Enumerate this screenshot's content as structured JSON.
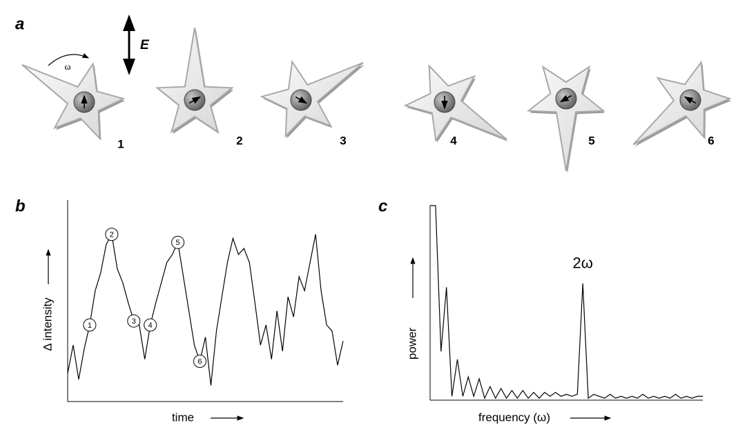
{
  "figure": {
    "panel_label": "a",
    "field_label": "E",
    "rotation_label": "ω",
    "stars": [
      {
        "label": "1"
      },
      {
        "label": "2"
      },
      {
        "label": "3"
      },
      {
        "label": "4"
      },
      {
        "label": "5"
      },
      {
        "label": "6"
      }
    ]
  },
  "chart_data": [
    {
      "type": "line",
      "panel_label": "b",
      "x_label": "time",
      "y_label": "Δ intensity",
      "color": "#000000",
      "xlim": [
        0,
        100
      ],
      "ylim": [
        0,
        100
      ],
      "x": [
        0,
        2,
        4,
        6,
        8,
        10,
        12,
        14,
        16,
        18,
        20,
        22,
        24,
        26,
        28,
        30,
        32,
        34,
        36,
        38,
        40,
        42,
        44,
        46,
        48,
        50,
        52,
        54,
        56,
        58,
        60,
        62,
        64,
        66,
        68,
        70,
        72,
        74,
        76,
        78,
        80,
        82,
        84,
        86,
        88,
        90,
        92,
        94,
        96,
        98,
        100
      ],
      "values": [
        14,
        28,
        11,
        26,
        38,
        55,
        64,
        78,
        83,
        66,
        59,
        49,
        40,
        38,
        21,
        38,
        49,
        59,
        69,
        73,
        79,
        62,
        45,
        28,
        20,
        32,
        8,
        35,
        52,
        69,
        81,
        73,
        76,
        69,
        49,
        28,
        38,
        21,
        45,
        25,
        52,
        42,
        62,
        55,
        69,
        83,
        55,
        38,
        35,
        18,
        30
      ],
      "annotations": [
        {
          "label": "1",
          "x": 8,
          "y": 38
        },
        {
          "label": "2",
          "x": 16,
          "y": 83
        },
        {
          "label": "3",
          "x": 24,
          "y": 40
        },
        {
          "label": "4",
          "x": 30,
          "y": 38
        },
        {
          "label": "5",
          "x": 40,
          "y": 79
        },
        {
          "label": "6",
          "x": 48,
          "y": 20
        }
      ]
    },
    {
      "type": "line",
      "panel_label": "c",
      "x_label": "frequency (ω)",
      "y_label": "power",
      "color": "#000000",
      "xlim": [
        0,
        100
      ],
      "ylim": [
        0,
        100
      ],
      "x": [
        0,
        2,
        4,
        6,
        8,
        10,
        12,
        14,
        16,
        18,
        20,
        22,
        24,
        26,
        28,
        30,
        32,
        34,
        36,
        38,
        40,
        42,
        44,
        46,
        48,
        50,
        52,
        54,
        56,
        58,
        60,
        62,
        64,
        66,
        68,
        70,
        72,
        74,
        76,
        78,
        80,
        82,
        84,
        86,
        88,
        90,
        92,
        94,
        96,
        98,
        100
      ],
      "values": [
        100,
        100,
        25,
        58,
        2,
        21,
        2,
        12,
        2,
        11,
        1,
        7,
        1,
        6,
        1,
        5,
        1,
        5,
        1,
        4,
        1,
        4,
        2,
        4,
        2,
        3,
        2,
        3,
        60,
        1,
        3,
        2,
        1,
        3,
        1,
        2,
        1,
        2,
        1,
        3,
        1,
        2,
        1,
        2,
        1,
        3,
        1,
        2,
        1,
        2,
        2
      ],
      "annotations": [
        {
          "label": "2ω",
          "x": 56,
          "y": 60
        }
      ]
    }
  ]
}
